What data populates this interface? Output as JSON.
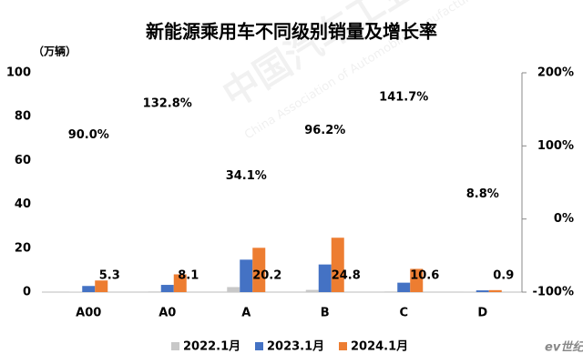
{
  "chart_data": {
    "type": "bar",
    "title": "新能源乘用车不同级别销量及增长率",
    "y_label": "（万辆）",
    "categories": [
      "A00",
      "A0",
      "A",
      "B",
      "C",
      "D"
    ],
    "series": [
      {
        "name": "2022.1月",
        "color": "#c8c8c8",
        "values": [
          0.2,
          0.3,
          2.3,
          1.0,
          0.3,
          0.1
        ]
      },
      {
        "name": "2023.1月",
        "color": "#4472c4",
        "values": [
          2.8,
          3.3,
          14.8,
          12.6,
          4.3,
          0.8
        ]
      },
      {
        "name": "2024.1月",
        "color": "#ed7d31",
        "values": [
          5.3,
          8.1,
          20.2,
          24.8,
          10.6,
          0.9
        ]
      }
    ],
    "growth": {
      "axis": "y2",
      "values": [
        90.0,
        132.8,
        34.1,
        96.2,
        141.7,
        8.8
      ],
      "value_labels": [
        "90.0%",
        "132.8%",
        "34.1%",
        "96.2%",
        "141.7%",
        "8.8%"
      ]
    },
    "ylim": [
      0,
      100
    ],
    "yticks": [
      0,
      20,
      40,
      60,
      80,
      100
    ],
    "y2lim": [
      -100,
      200
    ],
    "y2ticks": [
      {
        "value": -100,
        "label": "-100%"
      },
      {
        "value": 0,
        "label": "0%"
      },
      {
        "value": 100,
        "label": "100%"
      },
      {
        "value": 200,
        "label": "200%"
      }
    ],
    "watermark": "中国汽车工业协会",
    "watermark_en": "China Association of Automobile Manufacturers",
    "logo": "ev世纪"
  }
}
